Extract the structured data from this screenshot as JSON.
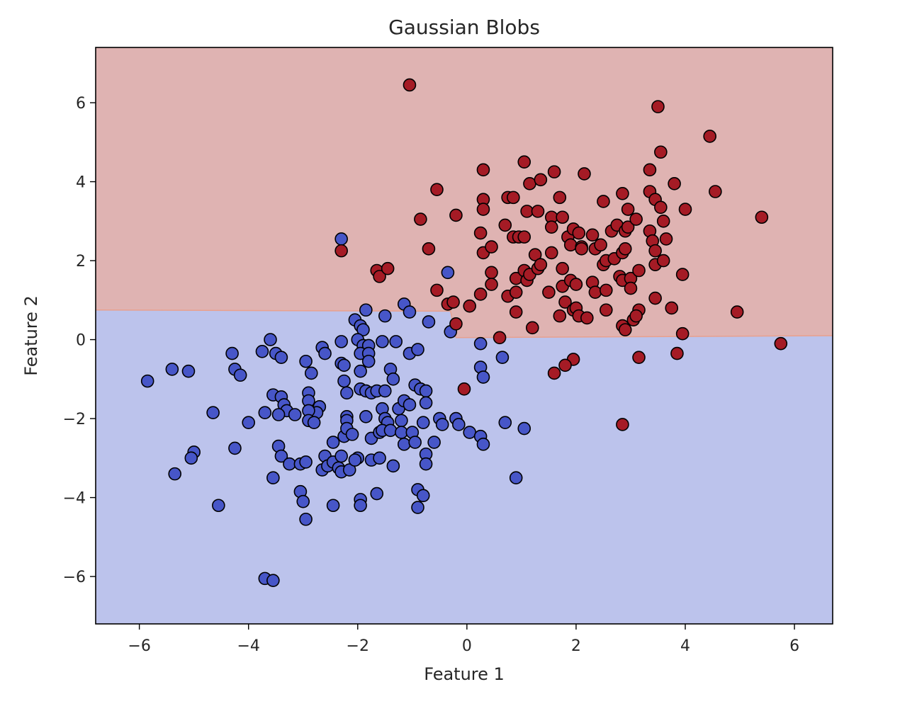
{
  "chart_data": {
    "type": "scatter",
    "title": "Gaussian Blobs",
    "xlabel": "Feature 1",
    "ylabel": "Feature 2",
    "xlim": [
      -6.8,
      6.7
    ],
    "ylim": [
      -7.2,
      7.4
    ],
    "xticks": [
      -6,
      -4,
      -2,
      0,
      2,
      4,
      6
    ],
    "xtick_labels": [
      "−6",
      "−4",
      "−2",
      "0",
      "2",
      "4",
      "6"
    ],
    "yticks": [
      -6,
      -4,
      -2,
      0,
      2,
      4,
      6
    ],
    "ytick_labels": [
      "−6",
      "−4",
      "−2",
      "0",
      "2",
      "4",
      "6"
    ],
    "grid": false,
    "decision_regions": {
      "class_0_color": "#bcc3ec",
      "class_1_color": "#dfb3b2",
      "boundary_color": "#e8a08e",
      "boundary": [
        [
          -6.8,
          0.75
        ],
        [
          -0.3,
          0.72
        ],
        [
          -0.2,
          0.05
        ],
        [
          6.7,
          0.1
        ]
      ]
    },
    "series": [
      {
        "class": 0,
        "color": "#4756c8",
        "points": [
          [
            -5.85,
            -1.05
          ],
          [
            -5.4,
            -0.75
          ],
          [
            -5.1,
            -0.8
          ],
          [
            -5.0,
            -2.85
          ],
          [
            -5.05,
            -3.0
          ],
          [
            -5.35,
            -3.4
          ],
          [
            -4.65,
            -1.85
          ],
          [
            -4.55,
            -4.2
          ],
          [
            -4.3,
            -0.35
          ],
          [
            -4.25,
            -0.75
          ],
          [
            -4.15,
            -0.9
          ],
          [
            -4.25,
            -2.75
          ],
          [
            -4.0,
            -2.1
          ],
          [
            -3.75,
            -0.3
          ],
          [
            -3.6,
            0.0
          ],
          [
            -3.5,
            -0.35
          ],
          [
            -3.4,
            -0.45
          ],
          [
            -3.7,
            -1.85
          ],
          [
            -3.55,
            -1.4
          ],
          [
            -3.4,
            -1.45
          ],
          [
            -3.35,
            -1.65
          ],
          [
            -3.3,
            -1.8
          ],
          [
            -3.45,
            -1.9
          ],
          [
            -3.15,
            -1.9
          ],
          [
            -3.45,
            -2.7
          ],
          [
            -3.4,
            -2.95
          ],
          [
            -3.25,
            -3.15
          ],
          [
            -3.05,
            -3.15
          ],
          [
            -2.95,
            -3.1
          ],
          [
            -3.55,
            -3.5
          ],
          [
            -3.05,
            -3.85
          ],
          [
            -3.0,
            -4.1
          ],
          [
            -2.95,
            -4.55
          ],
          [
            -3.7,
            -6.05
          ],
          [
            -3.55,
            -6.1
          ],
          [
            -2.95,
            -0.55
          ],
          [
            -2.85,
            -0.85
          ],
          [
            -2.9,
            -1.35
          ],
          [
            -2.9,
            -1.55
          ],
          [
            -2.7,
            -1.7
          ],
          [
            -2.75,
            -1.85
          ],
          [
            -2.9,
            -1.8
          ],
          [
            -2.9,
            -2.05
          ],
          [
            -2.8,
            -2.1
          ],
          [
            -2.65,
            -0.2
          ],
          [
            -2.6,
            -0.35
          ],
          [
            -2.6,
            -2.95
          ],
          [
            -2.65,
            -3.3
          ],
          [
            -2.55,
            -3.2
          ],
          [
            -2.45,
            -2.6
          ],
          [
            -2.45,
            -3.1
          ],
          [
            -2.35,
            -3.25
          ],
          [
            -2.3,
            -3.35
          ],
          [
            -2.45,
            -4.2
          ],
          [
            -2.3,
            -0.05
          ],
          [
            -2.3,
            -0.6
          ],
          [
            -2.25,
            -0.65
          ],
          [
            -2.25,
            -1.05
          ],
          [
            -2.2,
            -1.35
          ],
          [
            -2.2,
            -1.95
          ],
          [
            -2.2,
            -2.05
          ],
          [
            -2.25,
            -2.45
          ],
          [
            -2.3,
            -2.95
          ],
          [
            -2.15,
            -3.3
          ],
          [
            -2.2,
            -2.25
          ],
          [
            -2.1,
            -2.4
          ],
          [
            -2.05,
            0.5
          ],
          [
            -1.95,
            0.35
          ],
          [
            -1.85,
            0.75
          ],
          [
            -1.9,
            0.25
          ],
          [
            -2.0,
            0.0
          ],
          [
            -1.9,
            -0.15
          ],
          [
            -1.8,
            -0.15
          ],
          [
            -1.95,
            -0.35
          ],
          [
            -1.8,
            -0.35
          ],
          [
            -1.95,
            -0.8
          ],
          [
            -1.8,
            -0.55
          ],
          [
            -1.95,
            -1.25
          ],
          [
            -1.85,
            -1.3
          ],
          [
            -1.85,
            -1.95
          ],
          [
            -1.75,
            -2.5
          ],
          [
            -2.0,
            -3.0
          ],
          [
            -2.05,
            -3.05
          ],
          [
            -1.95,
            -4.05
          ],
          [
            -1.95,
            -4.2
          ],
          [
            -1.75,
            -1.35
          ],
          [
            -1.65,
            -1.3
          ],
          [
            -1.55,
            -1.75
          ],
          [
            -1.5,
            -2.0
          ],
          [
            -1.45,
            -2.1
          ],
          [
            -1.6,
            -2.35
          ],
          [
            -1.55,
            -2.3
          ],
          [
            -1.4,
            -2.3
          ],
          [
            -1.75,
            -3.05
          ],
          [
            -1.6,
            -3.0
          ],
          [
            -1.65,
            -3.9
          ],
          [
            -1.55,
            -0.05
          ],
          [
            -1.5,
            0.6
          ],
          [
            -1.5,
            -1.3
          ],
          [
            -1.4,
            -0.75
          ],
          [
            -1.35,
            -1.0
          ],
          [
            -1.3,
            -0.05
          ],
          [
            -1.25,
            -1.75
          ],
          [
            -1.2,
            -2.05
          ],
          [
            -1.15,
            -1.55
          ],
          [
            -1.2,
            -2.35
          ],
          [
            -1.35,
            -3.2
          ],
          [
            -1.15,
            -2.65
          ],
          [
            -1.15,
            0.9
          ],
          [
            -1.05,
            0.7
          ],
          [
            -1.05,
            -0.35
          ],
          [
            -1.05,
            -1.65
          ],
          [
            -0.9,
            -0.25
          ],
          [
            -0.95,
            -1.15
          ],
          [
            -0.85,
            -1.25
          ],
          [
            -1.0,
            -2.35
          ],
          [
            -0.95,
            -2.6
          ],
          [
            -0.75,
            -1.3
          ],
          [
            -0.75,
            -1.6
          ],
          [
            -0.8,
            -2.1
          ],
          [
            -0.75,
            -2.9
          ],
          [
            -0.75,
            -3.15
          ],
          [
            -0.9,
            -3.8
          ],
          [
            -0.8,
            -3.95
          ],
          [
            -0.9,
            -4.25
          ],
          [
            -0.7,
            0.45
          ],
          [
            -0.6,
            -2.6
          ],
          [
            -0.5,
            -2.0
          ],
          [
            -0.45,
            -2.15
          ],
          [
            -0.35,
            1.7
          ],
          [
            -0.3,
            0.2
          ],
          [
            -0.2,
            -2.0
          ],
          [
            -0.15,
            -2.15
          ],
          [
            -2.3,
            2.55
          ],
          [
            0.05,
            -2.35
          ],
          [
            0.25,
            -2.45
          ],
          [
            0.3,
            -2.65
          ],
          [
            0.25,
            -0.1
          ],
          [
            0.25,
            -0.7
          ],
          [
            0.3,
            -0.95
          ],
          [
            0.65,
            -0.45
          ],
          [
            0.7,
            -2.1
          ],
          [
            0.9,
            -3.5
          ],
          [
            1.05,
            -2.25
          ]
        ]
      },
      {
        "class": 1,
        "color": "#a51b25",
        "points": [
          [
            -1.05,
            6.45
          ],
          [
            -2.3,
            2.25
          ],
          [
            -1.65,
            1.75
          ],
          [
            -1.6,
            1.6
          ],
          [
            -1.45,
            1.8
          ],
          [
            -0.85,
            3.05
          ],
          [
            -0.7,
            2.3
          ],
          [
            -0.55,
            3.8
          ],
          [
            -0.55,
            1.25
          ],
          [
            -0.35,
            0.9
          ],
          [
            -0.25,
            0.95
          ],
          [
            -0.2,
            3.15
          ],
          [
            -0.2,
            0.4
          ],
          [
            0.05,
            0.85
          ],
          [
            0.25,
            2.7
          ],
          [
            0.25,
            1.15
          ],
          [
            0.3,
            4.3
          ],
          [
            0.3,
            3.55
          ],
          [
            0.3,
            3.3
          ],
          [
            0.3,
            2.2
          ],
          [
            0.45,
            2.35
          ],
          [
            0.45,
            1.7
          ],
          [
            0.45,
            1.4
          ],
          [
            0.6,
            0.05
          ],
          [
            0.75,
            3.6
          ],
          [
            0.85,
            3.6
          ],
          [
            0.7,
            2.9
          ],
          [
            0.85,
            2.6
          ],
          [
            0.95,
            2.6
          ],
          [
            0.75,
            1.1
          ],
          [
            0.9,
            1.2
          ],
          [
            0.9,
            0.7
          ],
          [
            0.9,
            1.55
          ],
          [
            1.05,
            4.5
          ],
          [
            1.15,
            3.95
          ],
          [
            1.1,
            3.25
          ],
          [
            1.05,
            2.6
          ],
          [
            1.05,
            1.75
          ],
          [
            1.1,
            1.5
          ],
          [
            1.15,
            1.65
          ],
          [
            1.25,
            2.15
          ],
          [
            1.3,
            1.8
          ],
          [
            1.35,
            4.05
          ],
          [
            1.3,
            3.25
          ],
          [
            1.35,
            1.9
          ],
          [
            1.2,
            0.3
          ],
          [
            1.55,
            3.1
          ],
          [
            1.55,
            2.85
          ],
          [
            1.55,
            2.2
          ],
          [
            1.5,
            1.2
          ],
          [
            1.6,
            4.25
          ],
          [
            1.7,
            3.6
          ],
          [
            1.75,
            3.1
          ],
          [
            1.75,
            1.8
          ],
          [
            1.75,
            1.35
          ],
          [
            1.8,
            0.95
          ],
          [
            1.7,
            0.6
          ],
          [
            1.85,
            2.6
          ],
          [
            1.9,
            2.4
          ],
          [
            1.9,
            1.5
          ],
          [
            1.95,
            2.8
          ],
          [
            1.95,
            0.75
          ],
          [
            2.0,
            1.4
          ],
          [
            2.0,
            0.8
          ],
          [
            2.05,
            2.7
          ],
          [
            2.1,
            2.35
          ],
          [
            2.1,
            2.3
          ],
          [
            2.05,
            0.6
          ],
          [
            2.15,
            4.2
          ],
          [
            2.2,
            0.55
          ],
          [
            2.3,
            2.65
          ],
          [
            2.35,
            2.3
          ],
          [
            2.3,
            1.45
          ],
          [
            2.35,
            1.2
          ],
          [
            2.45,
            2.4
          ],
          [
            2.5,
            3.5
          ],
          [
            2.5,
            1.9
          ],
          [
            2.55,
            2.0
          ],
          [
            2.55,
            1.25
          ],
          [
            2.55,
            0.75
          ],
          [
            2.65,
            2.75
          ],
          [
            2.7,
            2.05
          ],
          [
            2.75,
            2.9
          ],
          [
            2.8,
            1.6
          ],
          [
            2.85,
            3.7
          ],
          [
            2.85,
            2.2
          ],
          [
            2.85,
            1.5
          ],
          [
            2.85,
            0.35
          ],
          [
            2.9,
            2.75
          ],
          [
            2.9,
            2.3
          ],
          [
            2.9,
            0.25
          ],
          [
            2.95,
            3.3
          ],
          [
            2.95,
            2.85
          ],
          [
            3.0,
            1.55
          ],
          [
            3.0,
            1.3
          ],
          [
            3.05,
            0.5
          ],
          [
            3.1,
            3.05
          ],
          [
            3.15,
            1.75
          ],
          [
            3.15,
            0.75
          ],
          [
            3.1,
            0.6
          ],
          [
            3.35,
            4.3
          ],
          [
            3.35,
            3.75
          ],
          [
            3.35,
            2.75
          ],
          [
            3.4,
            2.5
          ],
          [
            3.45,
            3.55
          ],
          [
            3.45,
            2.25
          ],
          [
            3.45,
            1.9
          ],
          [
            3.5,
            5.9
          ],
          [
            3.55,
            4.75
          ],
          [
            3.55,
            3.35
          ],
          [
            3.45,
            1.05
          ],
          [
            3.6,
            2.0
          ],
          [
            3.6,
            3.0
          ],
          [
            3.65,
            2.55
          ],
          [
            3.8,
            3.95
          ],
          [
            3.75,
            0.8
          ],
          [
            3.95,
            1.65
          ],
          [
            3.95,
            0.15
          ],
          [
            4.0,
            3.3
          ],
          [
            4.45,
            5.15
          ],
          [
            4.55,
            3.75
          ],
          [
            4.95,
            0.7
          ],
          [
            5.4,
            3.1
          ],
          [
            5.75,
            -0.1
          ],
          [
            3.85,
            -0.35
          ],
          [
            3.15,
            -0.45
          ],
          [
            2.85,
            -2.15
          ],
          [
            1.95,
            -0.5
          ],
          [
            1.8,
            -0.65
          ],
          [
            1.6,
            -0.85
          ],
          [
            -0.05,
            -1.25
          ]
        ]
      }
    ]
  }
}
